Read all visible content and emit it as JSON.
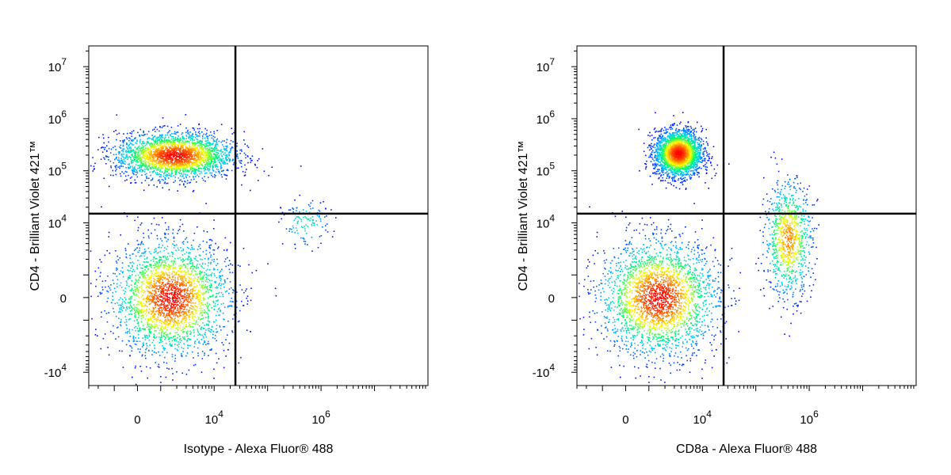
{
  "chart_data": [
    {
      "type": "scatter",
      "style": "flow-cytometry pseudocolor density dot plot",
      "xlabel": "Isotype - Alexa Fluor® 488",
      "ylabel": "CD4 - Brilliant Violet 421™",
      "x_scale": "biexponential",
      "y_scale": "biexponential",
      "x_tick_labels": [
        {
          "base": "0",
          "exp": ""
        },
        {
          "base": "10",
          "exp": "4"
        },
        {
          "base": "10",
          "exp": "6"
        }
      ],
      "y_tick_labels": [
        {
          "base": "-10",
          "exp": "4"
        },
        {
          "base": "0",
          "exp": ""
        },
        {
          "base": "10",
          "exp": "4"
        },
        {
          "base": "10",
          "exp": "5"
        },
        {
          "base": "10",
          "exp": "6"
        },
        {
          "base": "10",
          "exp": "7"
        }
      ],
      "quadrant_gate": {
        "x": 25000,
        "y": 15000
      },
      "populations": [
        {
          "x": 1500,
          "y": 0,
          "spread_x": "wide",
          "spread_y": "wide",
          "relative_density": "high"
        },
        {
          "x": 1800,
          "y": 200000,
          "spread_x": "wide",
          "spread_y": "narrow",
          "relative_density": "high"
        },
        {
          "x": 500000,
          "y": 10000,
          "spread_x": "narrow",
          "spread_y": "narrow",
          "relative_density": "sparse"
        }
      ],
      "colormap": [
        "#0000ff",
        "#00c8ff",
        "#00ff64",
        "#ffff00",
        "#ff8000",
        "#ff0000"
      ],
      "grid": false
    },
    {
      "type": "scatter",
      "style": "flow-cytometry pseudocolor density dot plot",
      "xlabel": "CD8a - Alexa Fluor® 488",
      "ylabel": "CD4 - Brilliant Violet 421™",
      "x_scale": "biexponential",
      "y_scale": "biexponential",
      "x_tick_labels": [
        {
          "base": "0",
          "exp": ""
        },
        {
          "base": "10",
          "exp": "4"
        },
        {
          "base": "10",
          "exp": "6"
        }
      ],
      "y_tick_labels": [
        {
          "base": "-10",
          "exp": "4"
        },
        {
          "base": "0",
          "exp": ""
        },
        {
          "base": "10",
          "exp": "4"
        },
        {
          "base": "10",
          "exp": "5"
        },
        {
          "base": "10",
          "exp": "6"
        },
        {
          "base": "10",
          "exp": "7"
        }
      ],
      "quadrant_gate": {
        "x": 25000,
        "y": 15000
      },
      "populations": [
        {
          "x": 1500,
          "y": 0,
          "spread_x": "wide",
          "spread_y": "wide",
          "relative_density": "high"
        },
        {
          "x": 3500,
          "y": 220000,
          "spread_x": "narrow",
          "spread_y": "narrow",
          "relative_density": "high"
        },
        {
          "x": 400000,
          "y": 5000,
          "spread_x": "narrow",
          "spread_y": "wide",
          "relative_density": "medium"
        }
      ],
      "colormap": [
        "#0000ff",
        "#00c8ff",
        "#00ff64",
        "#ffff00",
        "#ff8000",
        "#ff0000"
      ],
      "grid": false
    }
  ]
}
